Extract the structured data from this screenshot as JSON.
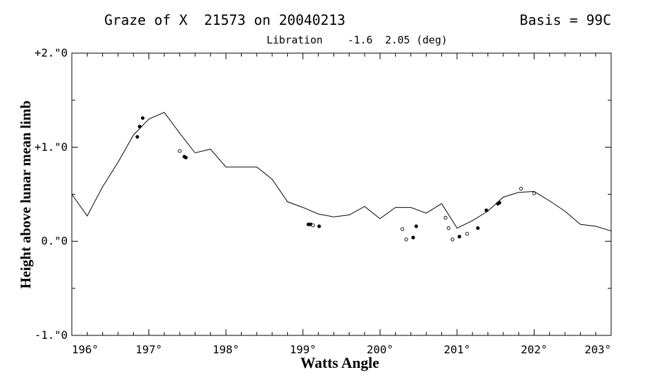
{
  "header": {
    "title": "Graze of X  21573 on 20040213",
    "basis": "Basis = 99C",
    "libration": "Libration    -1.6  2.05 (deg)"
  },
  "chart_data": {
    "type": "line",
    "xlabel": "Watts Angle",
    "ylabel": "Height above lunar mean limb",
    "xlim": [
      196,
      203
    ],
    "ylim": [
      -1.0,
      2.0
    ],
    "x_ticks": [
      196,
      197,
      198,
      199,
      200,
      201,
      202,
      203
    ],
    "x_tick_labels": [
      "196°",
      "197°",
      "198°",
      "199°",
      "200°",
      "201°",
      "202°",
      "203°"
    ],
    "y_ticks": [
      2.0,
      1.0,
      0.0,
      -1.0
    ],
    "y_tick_labels": [
      "+2.\"0",
      "+1.\"0",
      "0.\"0",
      "-1.\"0"
    ],
    "grid": false,
    "limb_profile": {
      "x": [
        196.0,
        196.2,
        196.4,
        196.6,
        196.8,
        197.0,
        197.2,
        197.4,
        197.6,
        197.8,
        198.0,
        198.2,
        198.4,
        198.6,
        198.8,
        199.0,
        199.2,
        199.4,
        199.6,
        199.8,
        200.0,
        200.2,
        200.4,
        200.6,
        200.8,
        201.0,
        201.2,
        201.4,
        201.6,
        201.8,
        202.0,
        202.2,
        202.4,
        202.6,
        202.8,
        203.0
      ],
      "y": [
        0.5,
        0.27,
        0.58,
        0.84,
        1.13,
        1.3,
        1.37,
        1.15,
        0.94,
        0.98,
        0.79,
        0.79,
        0.79,
        0.66,
        0.42,
        0.36,
        0.29,
        0.26,
        0.28,
        0.37,
        0.24,
        0.36,
        0.36,
        0.3,
        0.4,
        0.14,
        0.22,
        0.32,
        0.47,
        0.52,
        0.53,
        0.43,
        0.32,
        0.18,
        0.16,
        0.11
      ]
    },
    "events_filled": [
      [
        196.85,
        1.11
      ],
      [
        196.88,
        1.22
      ],
      [
        196.92,
        1.31
      ],
      [
        197.46,
        0.9
      ],
      [
        197.48,
        0.89
      ],
      [
        199.07,
        0.18
      ],
      [
        199.1,
        0.18
      ],
      [
        199.21,
        0.16
      ],
      [
        200.43,
        0.04
      ],
      [
        200.47,
        0.16
      ],
      [
        201.03,
        0.05
      ],
      [
        201.27,
        0.14
      ],
      [
        201.38,
        0.33
      ],
      [
        201.53,
        0.4
      ],
      [
        201.55,
        0.41
      ]
    ],
    "events_open": [
      [
        197.4,
        0.96
      ],
      [
        199.13,
        0.17
      ],
      [
        200.29,
        0.13
      ],
      [
        200.34,
        0.02
      ],
      [
        200.85,
        0.25
      ],
      [
        200.89,
        0.14
      ],
      [
        200.94,
        0.02
      ],
      [
        201.13,
        0.08
      ],
      [
        201.83,
        0.56
      ],
      [
        202.0,
        0.51
      ]
    ]
  }
}
